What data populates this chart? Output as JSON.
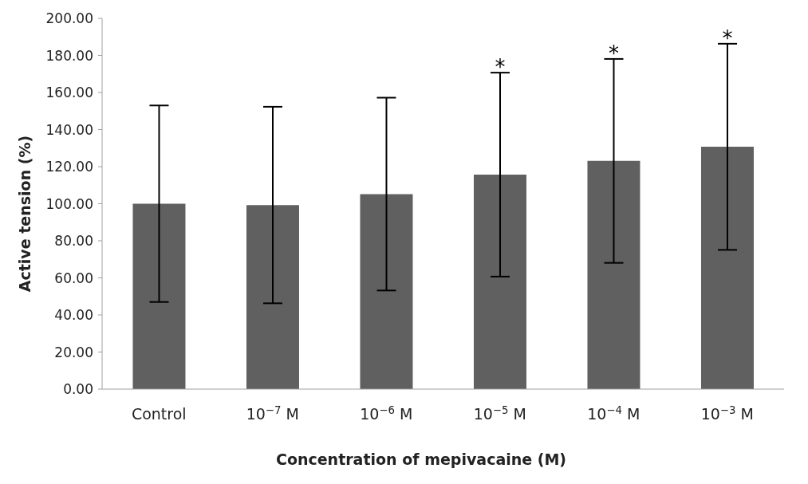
{
  "chart_data": {
    "type": "bar",
    "xlabel": "Concentration of mepivacaine (M)",
    "ylabel": "Active tension (%)",
    "categories": [
      "Control",
      "10$^{−7}$ M",
      "10$^{−6}$ M",
      "10$^{−5}$ M",
      "10$^{−4}$ M",
      "10$^{−3}$ M"
    ],
    "values": [
      100,
      99.3,
      105.2,
      115.7,
      123.1,
      130.7
    ],
    "errors": [
      53,
      53,
      52,
      55,
      55,
      55.6
    ],
    "color": "#606060",
    "ylim": [
      0,
      200
    ],
    "yticks": [
      {
        "value": 0,
        "label": "0.00"
      },
      {
        "value": 20,
        "label": "20.00"
      },
      {
        "value": 40,
        "label": "40.00"
      },
      {
        "value": 60,
        "label": "60.00"
      },
      {
        "value": 80,
        "label": "80.00"
      },
      {
        "value": 100,
        "label": "100.00"
      },
      {
        "value": 120,
        "label": "120.00"
      },
      {
        "value": 140,
        "label": "140.00"
      },
      {
        "value": 160,
        "label": "160.00"
      },
      {
        "value": 180,
        "label": "180.00"
      },
      {
        "value": 200,
        "label": "200.00"
      }
    ],
    "annotations": [
      "*",
      "*",
      "*"
    ],
    "grid": false,
    "legend": false
  }
}
